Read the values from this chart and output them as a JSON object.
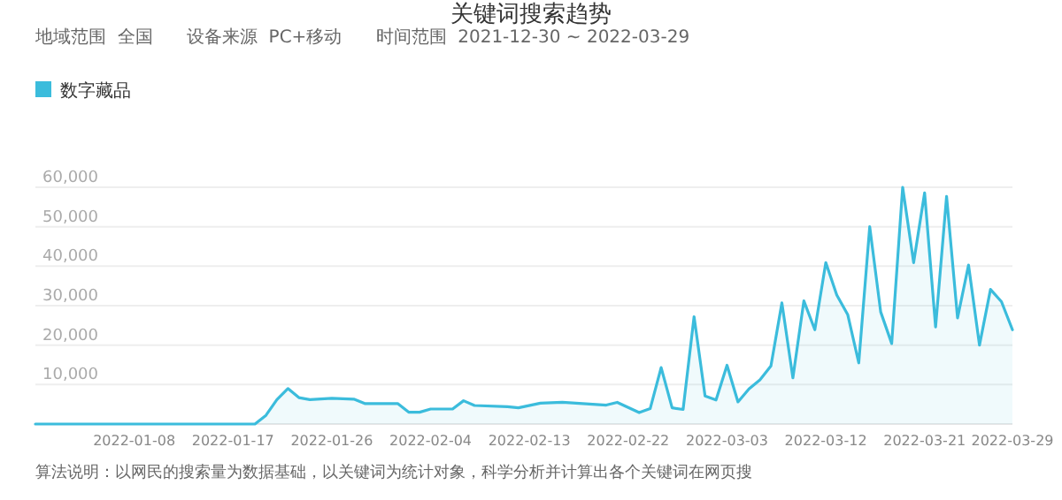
{
  "chart_data": {
    "type": "area",
    "title": "关键词搜索趋势",
    "subtitle": "地域范围  全国      设备来源  PC+移动      时间范围  2021-12-30 ~ 2022-03-29",
    "annotations": [
      "算法说明：以网民的搜索量为数据基础，以关键词为统计对象，科学分析并计算出各个关键词在网页搜"
    ],
    "x": [
      "2021-12-30",
      "2022-01-19",
      "2022-01-20",
      "2022-01-21",
      "2022-01-22",
      "2022-01-23",
      "2022-01-24",
      "2022-01-26",
      "2022-01-28",
      "2022-01-29",
      "2022-02-01",
      "2022-02-02",
      "2022-02-03",
      "2022-02-04",
      "2022-02-06",
      "2022-02-07",
      "2022-02-08",
      "2022-02-11",
      "2022-02-12",
      "2022-02-14",
      "2022-02-16",
      "2022-02-20",
      "2022-02-21",
      "2022-02-23",
      "2022-02-24",
      "2022-02-25",
      "2022-02-26",
      "2022-02-27",
      "2022-02-28",
      "2022-03-01",
      "2022-03-02",
      "2022-03-03",
      "2022-03-04",
      "2022-03-05",
      "2022-03-06",
      "2022-03-07",
      "2022-03-08",
      "2022-03-09",
      "2022-03-10",
      "2022-03-11",
      "2022-03-12",
      "2022-03-13",
      "2022-03-14",
      "2022-03-15",
      "2022-03-16",
      "2022-03-17",
      "2022-03-18",
      "2022-03-19",
      "2022-03-20",
      "2022-03-21",
      "2022-03-22",
      "2022-03-23",
      "2022-03-24",
      "2022-03-25",
      "2022-03-26",
      "2022-03-27",
      "2022-03-28",
      "2022-03-29"
    ],
    "series": [
      {
        "name": "数字藏品",
        "color": "#3bbcdc",
        "values": [
          0,
          0,
          2200,
          6200,
          9000,
          6700,
          6200,
          6500,
          6300,
          5200,
          5200,
          3000,
          3000,
          3800,
          3800,
          5900,
          4700,
          4400,
          4100,
          5300,
          5500,
          4800,
          5500,
          2900,
          3900,
          14300,
          4100,
          3700,
          27200,
          7100,
          6100,
          14900,
          5600,
          8900,
          11200,
          14700,
          30700,
          11700,
          31200,
          23900,
          40900,
          32700,
          27700,
          15500,
          50000,
          28400,
          20400,
          60000,
          40900,
          58600,
          24600,
          57700,
          26900,
          40300,
          20000,
          34100,
          31000,
          23900
        ]
      }
    ],
    "xlim": [
      "2021-12-30",
      "2022-03-29"
    ],
    "xticks": [
      "2022-01-08",
      "2022-01-17",
      "2022-01-26",
      "2022-02-04",
      "2022-02-13",
      "2022-02-22",
      "2022-03-03",
      "2022-03-12",
      "2022-03-21",
      "2022-03-29"
    ],
    "ylim": [
      0,
      60000
    ],
    "yticks": [
      {
        "value": 10000,
        "label": "10,000"
      },
      {
        "value": 20000,
        "label": "20,000"
      },
      {
        "value": 30000,
        "label": "30,000"
      },
      {
        "value": 40000,
        "label": "40,000"
      },
      {
        "value": 50000,
        "label": "50,000"
      },
      {
        "value": 60000,
        "label": "60,000"
      }
    ],
    "grid": "y",
    "legend": "top left"
  }
}
